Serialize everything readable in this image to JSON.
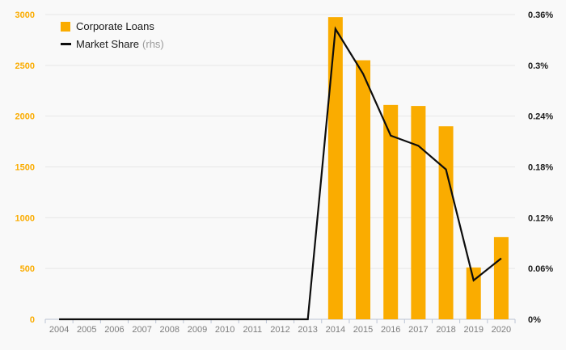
{
  "legend": {
    "bar_label": "Corporate Loans",
    "line_label": "Market Share",
    "line_label_suffix": "(rhs)"
  },
  "colors": {
    "background": "#f9f9f9",
    "bar": "#faac00",
    "line": "#0d0d0d",
    "gridline": "#e7e7e7",
    "axis_line": "#bcc4d4",
    "left_axis_label": "#faac00",
    "right_axis_label": "#1a1a1a",
    "x_axis_label": "#7d7d7d",
    "legend_text": "#1a1a1a",
    "legend_suffix": "#9b9b9b"
  },
  "chart_data": {
    "type": "combo",
    "categories": [
      "2004",
      "2005",
      "2006",
      "2007",
      "2008",
      "2009",
      "2010",
      "2011",
      "2012",
      "2013",
      "2014",
      "2015",
      "2016",
      "2017",
      "2018",
      "2019",
      "2020"
    ],
    "series": [
      {
        "name": "Corporate Loans",
        "type": "bar",
        "axis": "left",
        "values": [
          null,
          null,
          null,
          null,
          null,
          null,
          null,
          null,
          null,
          null,
          2975,
          2550,
          2110,
          2100,
          1900,
          510,
          810
        ]
      },
      {
        "name": "Market Share (rhs)",
        "type": "line",
        "axis": "right",
        "values": [
          0,
          0,
          0,
          0,
          0,
          0,
          0,
          0,
          0,
          0,
          0.343,
          0.29,
          0.217,
          0.205,
          0.177,
          0.046,
          0.072
        ]
      }
    ],
    "left_axis": {
      "min": 0,
      "max": 3000,
      "step": 500,
      "tick_labels": [
        "0",
        "500",
        "1000",
        "1500",
        "2000",
        "2500",
        "3000"
      ]
    },
    "right_axis": {
      "min": 0,
      "max": 0.36,
      "step": 0.06,
      "tick_labels": [
        "0%",
        "0.06%",
        "0.12%",
        "0.18%",
        "0.24%",
        "0.3%",
        "0.36%"
      ]
    },
    "grid": true,
    "legend_position": "top-left",
    "title": ""
  }
}
